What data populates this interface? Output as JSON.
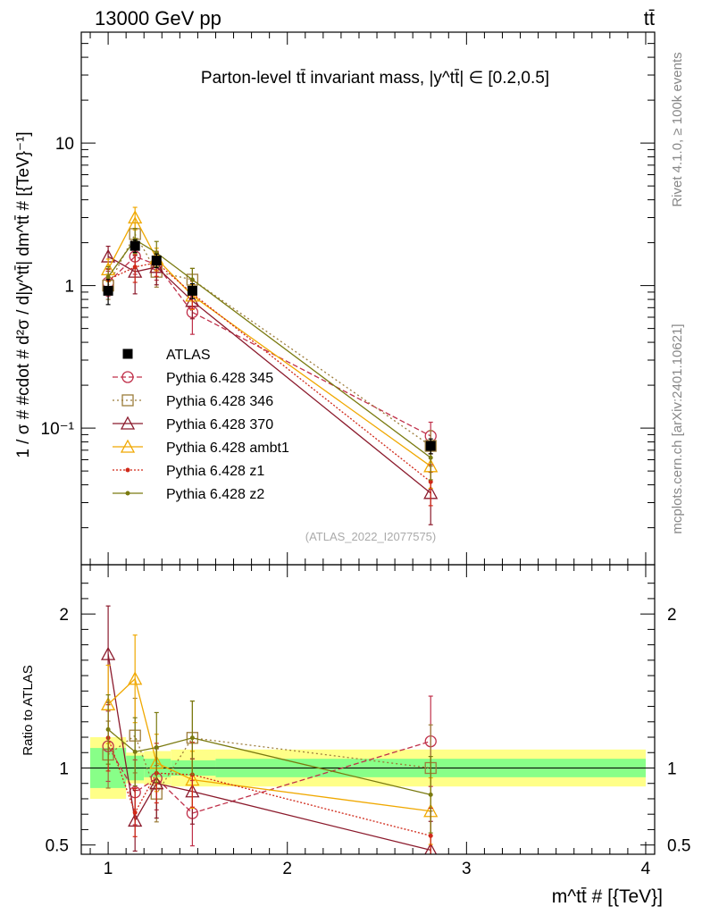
{
  "header": {
    "left": "13000 GeV pp",
    "right": "tt̄"
  },
  "side_labels": {
    "rivet": "Rivet 4.1.0, ≥ 100k events",
    "mcplots": "mcplots.cern.ch [arXiv:2401.10621]"
  },
  "chart_data": {
    "type": "line",
    "title": "Parton-level tt̄ invariant mass, |y^tt̄| ∈ [0.2,0.5]",
    "analysis_id": "(ATLAS_2022_I2077575)",
    "xlabel": "m^tt̄ # [{TeV}]",
    "ylabel": "1 / σ # #cdot # d²σ / d|y^tt̄| dm^tt̄ # [{TeV}⁻¹]",
    "ratio_ylabel": "Ratio to ATLAS",
    "xlim": [
      0.85,
      4.05
    ],
    "ylim_main": [
      0.011,
      60
    ],
    "ylim_ratio": [
      0.44,
      2.32
    ],
    "x_ticks": [
      1,
      2,
      3,
      4
    ],
    "x_tick_labels": [
      "1",
      "2",
      "3",
      "4"
    ],
    "main_y_ticks": [
      0.1,
      1,
      10
    ],
    "main_y_tick_labels": [
      "10⁻¹",
      "1",
      "10"
    ],
    "ratio_y_ticks": [
      0.5,
      1,
      2
    ],
    "ratio_y_tick_labels": [
      "0.5",
      "1",
      "2"
    ],
    "x": [
      1.0,
      1.15,
      1.27,
      1.47,
      2.8
    ],
    "bin_edges": [
      0.9,
      1.1,
      1.2,
      1.35,
      1.6,
      4.0
    ],
    "data": {
      "name": "ATLAS",
      "values": [
        0.92,
        1.9,
        1.5,
        0.92,
        0.075
      ],
      "rel_err_stat": [
        0.13,
        0.08,
        0.06,
        0.05,
        0.06
      ],
      "rel_err_total": [
        0.2,
        0.1,
        0.11,
        0.12,
        0.12
      ]
    },
    "series": [
      {
        "name": "Pythia 6.428 345",
        "color": "#c0304a",
        "marker": "circle",
        "dash": "6,3",
        "values": [
          1.05,
          1.6,
          1.4,
          0.65,
          0.088
        ],
        "rel_err": [
          0.2,
          0.25,
          0.22,
          0.3,
          0.25
        ]
      },
      {
        "name": "Pythia 6.428 346",
        "color": "#9c7c3a",
        "marker": "square",
        "dash": "2,3",
        "values": [
          1.0,
          2.3,
          1.25,
          1.1,
          0.075
        ],
        "rel_err": [
          0.2,
          0.2,
          0.22,
          0.2,
          0.28
        ]
      },
      {
        "name": "Pythia 6.428 370",
        "color": "#8b1a2c",
        "marker": "triangle",
        "dash": "",
        "values": [
          1.6,
          1.25,
          1.35,
          0.78,
          0.035
        ],
        "rel_err": [
          0.18,
          0.3,
          0.25,
          0.25,
          0.4
        ]
      },
      {
        "name": "Pythia 6.428 ambt1",
        "color": "#f0a800",
        "marker": "triangle",
        "dash": "",
        "values": [
          1.3,
          3.0,
          1.55,
          0.85,
          0.054
        ],
        "rel_err": [
          0.18,
          0.18,
          0.18,
          0.2,
          0.3
        ]
      },
      {
        "name": "Pythia 6.428 z1",
        "color": "#d02818",
        "marker": "dot",
        "dash": "2,2",
        "values": [
          1.1,
          1.35,
          1.45,
          0.88,
          0.042
        ],
        "rel_err": [
          0.18,
          0.22,
          0.2,
          0.22,
          0.32
        ]
      },
      {
        "name": "Pythia 6.428 z2",
        "color": "#7a7a10",
        "marker": "dot",
        "dash": "",
        "values": [
          1.15,
          2.1,
          1.7,
          1.1,
          0.062
        ],
        "rel_err": [
          0.18,
          0.2,
          0.2,
          0.2,
          0.3
        ]
      }
    ]
  }
}
